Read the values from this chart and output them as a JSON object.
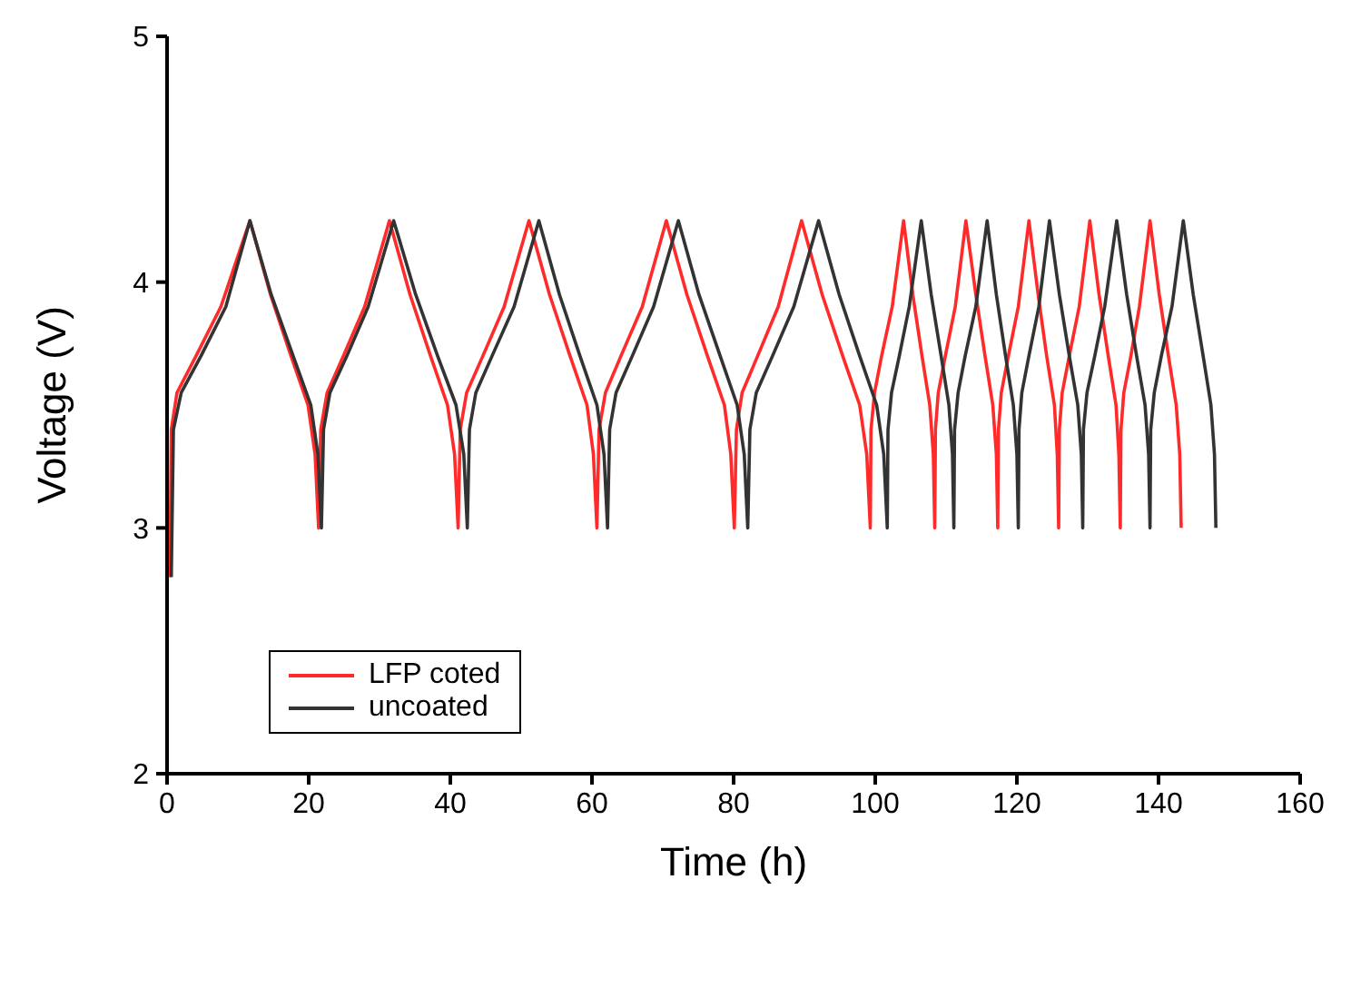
{
  "chart_data": {
    "type": "line",
    "xlabel": "Time (h)",
    "ylabel": "Voltage (V)",
    "xlim": [
      0,
      160
    ],
    "xticks": [
      0,
      20,
      40,
      60,
      80,
      100,
      120,
      140,
      160
    ],
    "ylim": [
      2,
      5
    ],
    "yticks": [
      2,
      3,
      4,
      5
    ],
    "grid": false,
    "legend": "bottom left",
    "marker": "none",
    "line_style": "solid",
    "series": [
      {
        "name": "LFP coted",
        "color": "#ff2a2a",
        "x": [
          0.4,
          0.6,
          1.4,
          4.1,
          7.6,
          11.7,
          14.6,
          17.5,
          19.9,
          20.9,
          21.4,
          21.7,
          22.6,
          24.9,
          27.9,
          31.4,
          34.3,
          37.2,
          39.6,
          40.6,
          41.1,
          41.4,
          42.3,
          44.6,
          47.6,
          51.1,
          54.0,
          56.9,
          59.3,
          60.2,
          60.7,
          61.0,
          61.9,
          64.1,
          67.1,
          70.5,
          73.4,
          76.3,
          78.7,
          79.6,
          80.1,
          80.4,
          81.2,
          83.4,
          86.3,
          89.6,
          92.5,
          95.4,
          97.8,
          98.8,
          99.3,
          99.4,
          99.9,
          100.9,
          102.4,
          104.0,
          105.3,
          106.6,
          107.7,
          108.2,
          108.4,
          108.5,
          108.9,
          109.9,
          111.3,
          112.8,
          114.2,
          115.5,
          116.6,
          117.1,
          117.3,
          117.4,
          117.8,
          118.8,
          120.2,
          121.7,
          123.0,
          124.2,
          125.3,
          125.7,
          125.9,
          126.0,
          126.4,
          127.4,
          128.8,
          130.3,
          131.6,
          132.9,
          134.0,
          134.4,
          134.6,
          134.7,
          135.1,
          136.1,
          137.3,
          138.8,
          140.1,
          141.4,
          142.5,
          143.0,
          143.2
        ],
        "values": [
          2.8,
          3.4,
          3.55,
          3.7,
          3.9,
          4.25,
          3.95,
          3.7,
          3.5,
          3.3,
          3.0,
          3.4,
          3.55,
          3.7,
          3.9,
          4.25,
          3.95,
          3.7,
          3.5,
          3.3,
          3.0,
          3.4,
          3.55,
          3.7,
          3.9,
          4.25,
          3.95,
          3.7,
          3.5,
          3.3,
          3.0,
          3.4,
          3.55,
          3.7,
          3.9,
          4.25,
          3.95,
          3.7,
          3.5,
          3.3,
          3.0,
          3.4,
          3.55,
          3.7,
          3.9,
          4.25,
          3.95,
          3.7,
          3.5,
          3.3,
          3.0,
          3.4,
          3.55,
          3.7,
          3.9,
          4.25,
          3.95,
          3.7,
          3.5,
          3.3,
          3.0,
          3.4,
          3.55,
          3.7,
          3.9,
          4.25,
          3.95,
          3.7,
          3.5,
          3.3,
          3.0,
          3.4,
          3.55,
          3.7,
          3.9,
          4.25,
          3.95,
          3.7,
          3.5,
          3.3,
          3.0,
          3.4,
          3.55,
          3.7,
          3.9,
          4.25,
          3.95,
          3.7,
          3.5,
          3.3,
          3.0,
          3.4,
          3.55,
          3.7,
          3.9,
          4.25,
          3.95,
          3.7,
          3.5,
          3.3,
          3.0
        ]
      },
      {
        "name": "uncoated",
        "color": "#333333",
        "x": [
          0.6,
          0.9,
          2.0,
          4.8,
          8.3,
          11.7,
          14.7,
          17.8,
          20.3,
          21.3,
          21.8,
          22.1,
          23.0,
          25.4,
          28.4,
          32.0,
          35.1,
          38.2,
          40.8,
          41.9,
          42.4,
          42.7,
          43.6,
          45.9,
          49.0,
          52.5,
          55.4,
          58.3,
          60.7,
          61.7,
          62.2,
          62.5,
          63.4,
          65.7,
          68.7,
          72.2,
          75.1,
          78.1,
          80.5,
          81.5,
          82.0,
          82.3,
          83.2,
          85.5,
          88.5,
          92.0,
          94.9,
          97.8,
          100.2,
          101.2,
          101.7,
          101.8,
          102.3,
          103.4,
          104.8,
          106.5,
          107.9,
          109.3,
          110.4,
          110.9,
          111.1,
          111.2,
          111.7,
          112.7,
          114.2,
          115.8,
          117.1,
          118.4,
          119.5,
          120.0,
          120.2,
          120.3,
          120.7,
          121.7,
          123.1,
          124.6,
          126.0,
          127.4,
          128.6,
          129.1,
          129.3,
          129.4,
          129.9,
          131.0,
          132.4,
          134.1,
          135.5,
          136.9,
          138.1,
          138.6,
          138.8,
          138.9,
          139.4,
          140.4,
          141.9,
          143.5,
          144.9,
          146.3,
          147.4,
          147.9,
          148.1
        ],
        "values": [
          2.8,
          3.4,
          3.55,
          3.7,
          3.9,
          4.25,
          3.95,
          3.7,
          3.5,
          3.3,
          3.0,
          3.4,
          3.55,
          3.7,
          3.9,
          4.25,
          3.95,
          3.7,
          3.5,
          3.3,
          3.0,
          3.4,
          3.55,
          3.7,
          3.9,
          4.25,
          3.95,
          3.7,
          3.5,
          3.3,
          3.0,
          3.4,
          3.55,
          3.7,
          3.9,
          4.25,
          3.95,
          3.7,
          3.5,
          3.3,
          3.0,
          3.4,
          3.55,
          3.7,
          3.9,
          4.25,
          3.95,
          3.7,
          3.5,
          3.3,
          3.0,
          3.4,
          3.55,
          3.7,
          3.9,
          4.25,
          3.95,
          3.7,
          3.5,
          3.3,
          3.0,
          3.4,
          3.55,
          3.7,
          3.9,
          4.25,
          3.95,
          3.7,
          3.5,
          3.3,
          3.0,
          3.4,
          3.55,
          3.7,
          3.9,
          4.25,
          3.95,
          3.7,
          3.5,
          3.3,
          3.0,
          3.4,
          3.55,
          3.7,
          3.9,
          4.25,
          3.95,
          3.7,
          3.5,
          3.3,
          3.0,
          3.4,
          3.55,
          3.7,
          3.9,
          4.25,
          3.95,
          3.7,
          3.5,
          3.3,
          3.0
        ]
      }
    ]
  }
}
